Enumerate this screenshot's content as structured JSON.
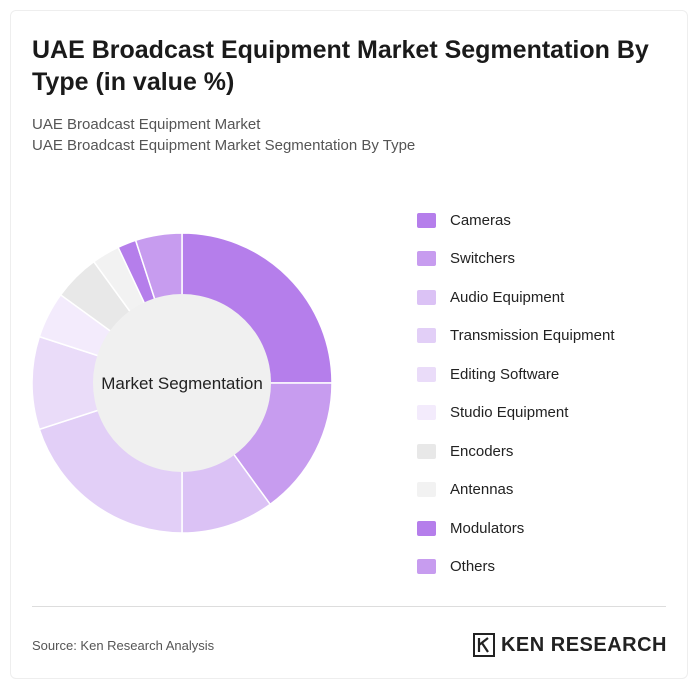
{
  "header": {
    "title": "UAE Broadcast Equipment Market Segmentation By Type (in value %)",
    "subtitle_line1": "UAE Broadcast Equipment Market",
    "subtitle_line2": "UAE Broadcast Equipment Market Segmentation By Type"
  },
  "chart_data": {
    "type": "pie",
    "variant": "donut",
    "center_label": "Market Segmentation",
    "legend_position": "right",
    "categories": [
      "Cameras",
      "Switchers",
      "Audio Equipment",
      "Transmission Equipment",
      "Editing Software",
      "Studio Equipment",
      "Encoders",
      "Antennas",
      "Modulators",
      "Others"
    ],
    "values": [
      25,
      15,
      10,
      20,
      10,
      5,
      5,
      3,
      2,
      5
    ],
    "colors": [
      "#b57eeb",
      "#c79cef",
      "#dbc2f5",
      "#e2cff7",
      "#eadcf9",
      "#f3ebfc",
      "#e8e8e8",
      "#f2f2f2",
      "#b57eeb",
      "#c79cef"
    ]
  },
  "footer": {
    "source": "Source: Ken Research Analysis",
    "brand": "KEN RESEARCH"
  }
}
